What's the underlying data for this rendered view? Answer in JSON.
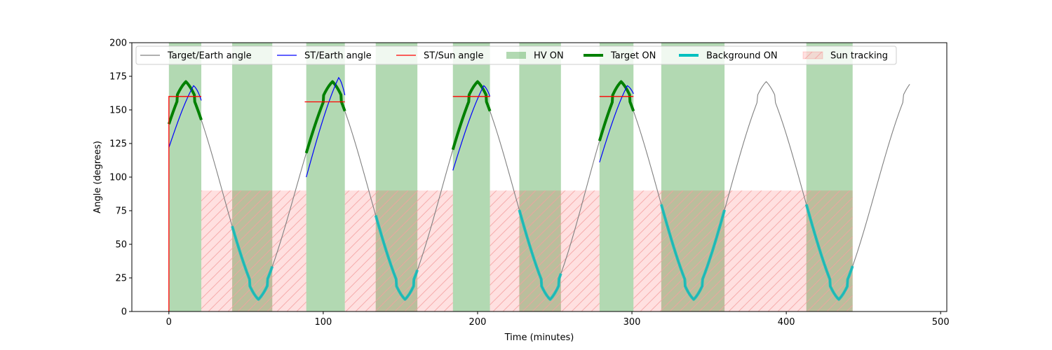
{
  "chart_data": {
    "type": "line",
    "title": "",
    "xlabel": "Time (minutes)",
    "ylabel": "Angle (degrees)",
    "xlim": [
      -24,
      504
    ],
    "ylim": [
      0,
      200
    ],
    "xticks": [
      0,
      100,
      200,
      300,
      400,
      500
    ],
    "yticks": [
      0,
      25,
      50,
      75,
      100,
      125,
      150,
      175,
      200
    ],
    "grid": false,
    "legend_position": "top",
    "legend": [
      {
        "label": "Target/Earth angle",
        "kind": "line",
        "color": "#808080"
      },
      {
        "label": "ST/Earth angle",
        "kind": "line",
        "color": "#0000ff"
      },
      {
        "label": "ST/Sun angle",
        "kind": "line",
        "color": "#ff0000"
      },
      {
        "label": "HV ON",
        "kind": "patch",
        "color": "#008000"
      },
      {
        "label": "Target ON",
        "kind": "thickline",
        "color": "#008000"
      },
      {
        "label": "Background ON",
        "kind": "thickline",
        "color": "#00bfbf"
      },
      {
        "label": "Sun tracking",
        "kind": "hatch",
        "color": "#ff0000"
      }
    ],
    "target_earth_angle": {
      "color": "#808080",
      "period_minutes": 95,
      "min": 9,
      "max": 171,
      "peak_times": [
        11,
        106,
        200,
        293,
        387
      ],
      "trough_times": [
        58,
        153,
        247,
        340,
        434
      ],
      "x_range": [
        0,
        480
      ]
    },
    "hv_on_intervals": [
      [
        0,
        21
      ],
      [
        41,
        67
      ],
      [
        89,
        114
      ],
      [
        134,
        161
      ],
      [
        184,
        208
      ],
      [
        227,
        254
      ],
      [
        279,
        301
      ],
      [
        319,
        360
      ],
      [
        413,
        443
      ]
    ],
    "target_on_intervals": [
      [
        0,
        21
      ],
      [
        89,
        114
      ],
      [
        184,
        208
      ],
      [
        279,
        301
      ]
    ],
    "background_on_intervals": [
      [
        41,
        67
      ],
      [
        134,
        161
      ],
      [
        227,
        254
      ],
      [
        319,
        360
      ],
      [
        413,
        443
      ]
    ],
    "sun_tracking_intervals": [
      [
        21,
        89
      ],
      [
        114,
        184
      ],
      [
        208,
        279
      ],
      [
        301,
        443
      ]
    ],
    "sun_tracking_level": 90,
    "st_earth_angle": {
      "color": "#0000ff",
      "segments": [
        {
          "t_start": 0,
          "t_end": 21,
          "start": 122,
          "peak_t": 16,
          "peak": 168,
          "end": 157
        },
        {
          "t_start": 89,
          "t_end": 114,
          "start": 100,
          "peak_t": 110,
          "peak": 174,
          "end": 161
        },
        {
          "t_start": 184,
          "t_end": 208,
          "start": 105,
          "peak_t": 204,
          "peak": 168,
          "end": 160
        },
        {
          "t_start": 279,
          "t_end": 301,
          "start": 111,
          "peak_t": 297,
          "peak": 168,
          "end": 162
        }
      ]
    },
    "st_sun_angle": {
      "color": "#ff0000",
      "segments": [
        {
          "t_start": 0,
          "t_end": 21,
          "value": 160,
          "drops_to_zero_at_start": true
        },
        {
          "t_start": 88,
          "t_end": 114,
          "value": 156
        },
        {
          "t_start": 184,
          "t_end": 208,
          "value": 160
        },
        {
          "t_start": 279,
          "t_end": 301,
          "value": 160
        }
      ]
    }
  }
}
